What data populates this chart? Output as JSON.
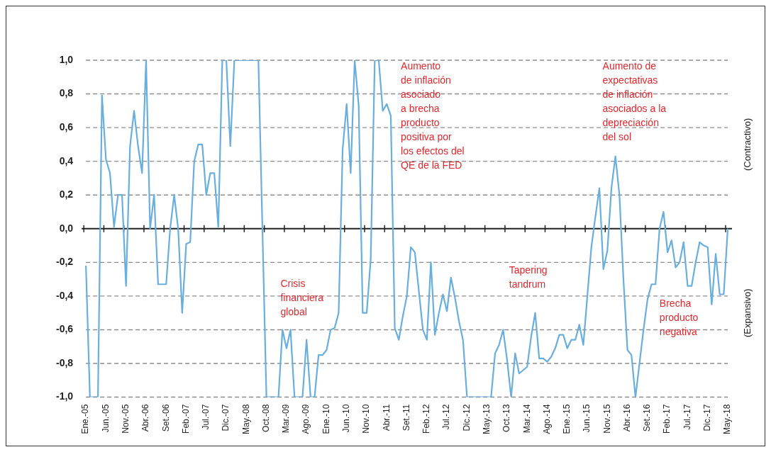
{
  "chart_data": {
    "type": "line",
    "color": "#6aaedd",
    "categories": [
      "Ene.-05",
      null,
      null,
      null,
      null,
      "Jun.-05",
      null,
      null,
      null,
      null,
      "Nov.-05",
      null,
      null,
      null,
      null,
      "Abr.-06",
      null,
      null,
      null,
      null,
      "Set.-06",
      null,
      null,
      null,
      null,
      "Feb.-07",
      null,
      null,
      null,
      null,
      "Jul.-07",
      null,
      null,
      null,
      null,
      "Dic.-07",
      null,
      null,
      null,
      null,
      "May.-08",
      null,
      null,
      null,
      null,
      "Oct.-08",
      null,
      null,
      null,
      null,
      "Mar.-09",
      null,
      null,
      null,
      null,
      "Ago.-09",
      null,
      null,
      null,
      null,
      "Ene.-10",
      null,
      null,
      null,
      null,
      "Jun.-10",
      null,
      null,
      null,
      null,
      "Nov.-10",
      null,
      null,
      null,
      null,
      "Abr.-11",
      null,
      null,
      null,
      null,
      "Set.-11",
      null,
      null,
      null,
      null,
      "Feb.-12",
      null,
      null,
      null,
      null,
      "Jul.-12",
      null,
      null,
      null,
      null,
      "Dic.-12",
      null,
      null,
      null,
      null,
      "May.-13",
      null,
      null,
      null,
      null,
      "Oct.-13",
      null,
      null,
      null,
      null,
      "Mar.-14",
      null,
      null,
      null,
      null,
      "Ago.-14",
      null,
      null,
      null,
      null,
      "Ene.-15",
      null,
      null,
      null,
      null,
      "Jun.-15",
      null,
      null,
      null,
      null,
      "Nov.-15",
      null,
      null,
      null,
      null,
      "Abr.-16",
      null,
      null,
      null,
      null,
      "Set.-16",
      null,
      null,
      null,
      null,
      "Feb.-17",
      null,
      null,
      null,
      null,
      "Jul.-17",
      null,
      null,
      null,
      null,
      "Dic.-17",
      null,
      null,
      null,
      null,
      "May.-18"
    ],
    "values": [
      -0.22,
      -1,
      -1,
      -1,
      0.79,
      0.41,
      0.33,
      0.01,
      0.2,
      0.2,
      -0.34,
      0.49,
      0.7,
      0.49,
      0.33,
      1,
      0,
      0.2,
      -0.33,
      -0.33,
      -0.33,
      0,
      0.2,
      0,
      -0.5,
      -0.09,
      -0.08,
      0.4,
      0.5,
      0.5,
      0.2,
      0.33,
      0.33,
      0.01,
      1,
      1,
      0.49,
      1,
      1,
      1,
      1,
      1,
      1,
      1,
      0,
      -1,
      -1,
      -1,
      -1,
      -0.6,
      -0.71,
      -0.6,
      -1,
      -1,
      -1,
      -0.66,
      -1,
      -1,
      -0.75,
      -0.75,
      -0.72,
      -0.6,
      -0.59,
      -0.5,
      0.47,
      0.74,
      0.33,
      1,
      0.73,
      -0.5,
      -0.5,
      -0.18,
      1,
      1,
      0.7,
      0.74,
      0.67,
      -0.59,
      -0.66,
      -0.52,
      -0.4,
      -0.11,
      -0.14,
      -0.37,
      -0.6,
      -0.66,
      -0.2,
      -0.63,
      -0.5,
      -0.39,
      -0.49,
      -0.29,
      -0.41,
      -0.55,
      -0.66,
      -1,
      -1,
      -1,
      -1,
      -1,
      -1,
      -1,
      -0.74,
      -0.69,
      -0.6,
      -0.78,
      -1,
      -0.74,
      -0.86,
      -0.84,
      -0.82,
      -0.64,
      -0.5,
      -0.77,
      -0.77,
      -0.79,
      -0.76,
      -0.71,
      -0.63,
      -0.63,
      -0.71,
      -0.66,
      -0.66,
      -0.57,
      -0.69,
      -0.4,
      -0.11,
      0.07,
      0.24,
      -0.24,
      -0.13,
      0.24,
      0.43,
      0.2,
      -0.3,
      -0.72,
      -0.75,
      -1,
      -0.8,
      -0.6,
      -0.42,
      -0.33,
      -0.33,
      0,
      0.1,
      -0.14,
      -0.07,
      -0.23,
      -0.2,
      -0.08,
      -0.34,
      -0.34,
      -0.2,
      -0.08,
      -0.1,
      -0.11,
      -0.45,
      -0.15,
      -0.39,
      -0.39,
      0
    ],
    "ylim": [
      -1,
      1
    ],
    "yticks": [
      {
        "value": -1,
        "label": "-1,0"
      },
      {
        "value": -0.8,
        "label": "-0,8"
      },
      {
        "value": -0.6,
        "label": "-0,6"
      },
      {
        "value": -0.4,
        "label": "-0,4"
      },
      {
        "value": -0.2,
        "label": "-0,2"
      },
      {
        "value": 0,
        "label": "0,0"
      },
      {
        "value": 0.2,
        "label": "0,2"
      },
      {
        "value": 0.4,
        "label": "0,4"
      },
      {
        "value": 0.6,
        "label": "0,6"
      },
      {
        "value": 0.8,
        "label": "0,8"
      },
      {
        "value": 1,
        "label": "1,0"
      }
    ],
    "grid": "y",
    "legend": false,
    "annotations": [
      "Aumento\nde inflación\nasociado\na brecha\nproducto\npositiva por\nlos efectos del\nQE de la FED",
      "Crisis\nfinanciera\nglobal",
      "Tapering\ntandrum",
      "Aumento de\nexpectativas\nde inflación\nasociados a la\ndepreciación\ndel sol",
      "Brecha\nproducto\nnegativa",
      "(Contractivo)",
      "(Expansivo)"
    ]
  }
}
